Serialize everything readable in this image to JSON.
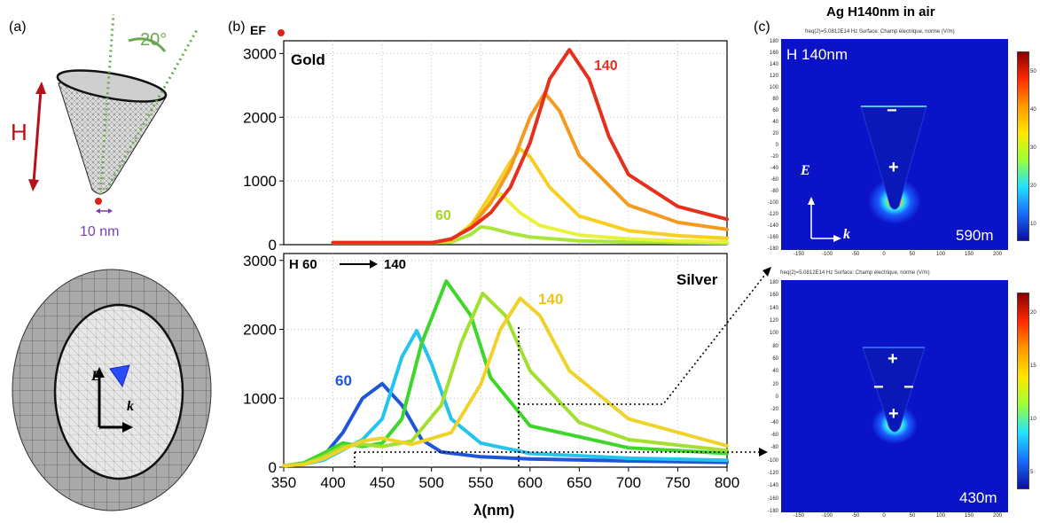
{
  "panel_a": {
    "label": "(a)",
    "angle_label": "20°",
    "height_label": "H",
    "tip_label": "10 nm",
    "e_vec": "E",
    "k_vec": "k"
  },
  "panel_b": {
    "label": "(b)",
    "ef_label": "EF",
    "gold_label": "Gold",
    "silver_label": "Silver",
    "h_range_label_start": "H 60",
    "h_range_label_end": "140",
    "gold_60": "60",
    "gold_140": "140",
    "silver_60": "60",
    "silver_140": "140",
    "xlabel": "λ(nm)"
  },
  "panel_c": {
    "label": "(c)",
    "title": "Ag H140nm in air",
    "top_header": "freq(2)=5.0812E14 Hz   Surface: Champ électrique, norme (V/m)",
    "bottom_header": "freq(2)=5.0812E14 Hz   Surface: Champ électrique, norme (V/m)",
    "top_inner": "H 140nm",
    "top_wavelength": "590m",
    "bottom_wavelength": "430m",
    "e_vec": "E",
    "k_vec": "k",
    "minus": "−",
    "plus": "+",
    "y_ticks": [
      "180",
      "160",
      "140",
      "120",
      "100",
      "80",
      "60",
      "40",
      "20",
      "0",
      "-20",
      "-40",
      "-60",
      "-80",
      "-100",
      "-120",
      "-140",
      "-160",
      "-180"
    ],
    "x_ticks": [
      "-150",
      "-100",
      "-50",
      "0",
      "50",
      "100",
      "150",
      "200"
    ],
    "top_cbar_ticks": [
      "50",
      "40",
      "30",
      "20",
      "10"
    ],
    "bottom_cbar_ticks": [
      "20",
      "15",
      "10",
      "5"
    ]
  },
  "chart_data": [
    {
      "type": "line",
      "title": "Gold",
      "ylim": [
        0,
        3200
      ],
      "y_ticks": [
        "0",
        "1000",
        "2000",
        "3000"
      ],
      "xlim": [
        350,
        800
      ],
      "series": [
        {
          "name": "60",
          "color": "#a8e63c",
          "x": [
            400,
            450,
            500,
            520,
            540,
            550,
            560,
            580,
            600,
            650,
            700,
            750,
            800
          ],
          "values": [
            30,
            30,
            30,
            40,
            160,
            280,
            260,
            180,
            120,
            60,
            40,
            30,
            25
          ]
        },
        {
          "color": "#e9f23a",
          "x": [
            400,
            450,
            500,
            520,
            540,
            560,
            570,
            590,
            610,
            650,
            700,
            750,
            800
          ],
          "values": [
            30,
            30,
            30,
            60,
            320,
            700,
            800,
            500,
            300,
            150,
            90,
            60,
            45
          ]
        },
        {
          "color": "#f7cf23",
          "x": [
            400,
            450,
            500,
            520,
            540,
            560,
            580,
            590,
            600,
            620,
            650,
            700,
            750,
            800
          ],
          "values": [
            30,
            30,
            30,
            70,
            300,
            780,
            1300,
            1500,
            1380,
            900,
            450,
            220,
            140,
            100
          ]
        },
        {
          "color": "#f39b1e",
          "x": [
            400,
            450,
            500,
            520,
            540,
            560,
            580,
            600,
            615,
            630,
            650,
            700,
            750,
            800
          ],
          "values": [
            30,
            30,
            30,
            80,
            280,
            650,
            1200,
            2000,
            2380,
            2100,
            1400,
            620,
            350,
            240
          ]
        },
        {
          "name": "140",
          "color": "#e6301c",
          "x": [
            400,
            450,
            500,
            520,
            540,
            560,
            580,
            600,
            620,
            640,
            660,
            680,
            700,
            750,
            800
          ],
          "values": [
            30,
            30,
            30,
            90,
            260,
            500,
            900,
            1600,
            2600,
            3060,
            2600,
            1700,
            1100,
            600,
            400
          ]
        }
      ]
    },
    {
      "type": "line",
      "title": "Silver",
      "xlabel": "λ(nm)",
      "xlim": [
        350,
        800
      ],
      "ylim": [
        0,
        3100
      ],
      "x_ticks": [
        "350",
        "400",
        "450",
        "500",
        "550",
        "600",
        "650",
        "700",
        "750",
        "800"
      ],
      "y_ticks": [
        "0",
        "1000",
        "2000",
        "3000"
      ],
      "series": [
        {
          "name": "60",
          "color": "#1f56d6",
          "x": [
            350,
            370,
            390,
            410,
            430,
            450,
            470,
            490,
            510,
            550,
            600,
            700,
            800
          ],
          "values": [
            20,
            50,
            150,
            500,
            1000,
            1210,
            900,
            400,
            220,
            150,
            120,
            90,
            70
          ]
        },
        {
          "color": "#25c4ee",
          "x": [
            350,
            370,
            390,
            410,
            430,
            450,
            470,
            485,
            500,
            520,
            550,
            600,
            700,
            800
          ],
          "values": [
            20,
            40,
            100,
            250,
            400,
            700,
            1600,
            1980,
            1500,
            700,
            350,
            200,
            130,
            100
          ]
        },
        {
          "color": "#3fd62b",
          "x": [
            350,
            370,
            390,
            410,
            430,
            450,
            470,
            490,
            515,
            540,
            560,
            600,
            700,
            800
          ],
          "values": [
            20,
            60,
            200,
            350,
            300,
            350,
            700,
            1800,
            2700,
            2200,
            1300,
            600,
            280,
            200
          ]
        },
        {
          "color": "#a2e02f",
          "x": [
            350,
            370,
            390,
            410,
            430,
            450,
            480,
            510,
            530,
            552,
            575,
            600,
            650,
            700,
            800
          ],
          "values": [
            20,
            40,
            150,
            300,
            330,
            300,
            380,
            900,
            1800,
            2520,
            2200,
            1400,
            650,
            400,
            240
          ]
        },
        {
          "name": "140",
          "color": "#f0d32a",
          "x": [
            350,
            370,
            390,
            410,
            430,
            450,
            480,
            520,
            550,
            570,
            590,
            610,
            640,
            700,
            800
          ],
          "values": [
            20,
            40,
            120,
            260,
            380,
            420,
            330,
            500,
            1200,
            2000,
            2450,
            2200,
            1400,
            700,
            310
          ]
        }
      ]
    }
  ]
}
